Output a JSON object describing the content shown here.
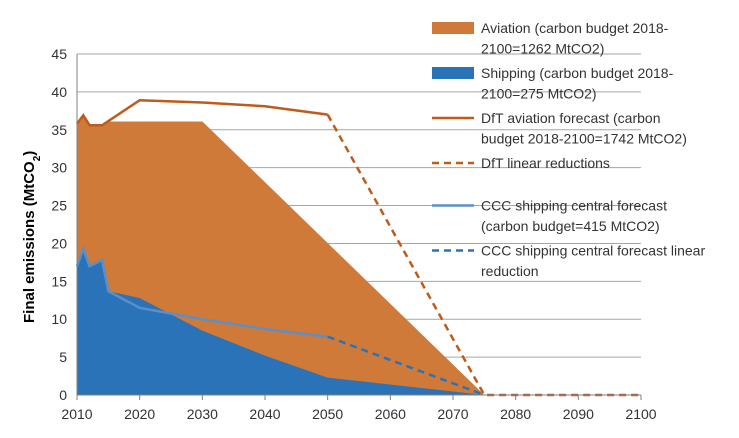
{
  "chart_data": {
    "type": "area",
    "ylabel_main": "Final emissions (MtCO",
    "ylabel_sub": "2",
    "ylabel_close": ")",
    "xlim": [
      2010,
      2100
    ],
    "ylim": [
      0,
      45
    ],
    "x_ticks": [
      "2010",
      "2020",
      "2030",
      "2040",
      "2050",
      "2060",
      "2070",
      "2080",
      "2090",
      "2100"
    ],
    "y_ticks": [
      "0",
      "5",
      "10",
      "15",
      "20",
      "25",
      "30",
      "35",
      "40",
      "45"
    ],
    "grid": "horizontal",
    "legend_position": "right",
    "colors": {
      "aviation_area": "#D07A3A",
      "shipping_area": "#2A73B8",
      "dft_line": "#C05A1A",
      "ccc_line": "#5B8FC7"
    },
    "series": [
      {
        "name": "Aviation (carbon budget 2018-2100=1262 MtCO2)",
        "kind": "area_total",
        "x": [
          2010,
          2011,
          2012,
          2014,
          2015,
          2020,
          2030,
          2075,
          2100
        ],
        "y": [
          35.8,
          36.7,
          35.6,
          35.6,
          36.1,
          36.1,
          36.1,
          0,
          0
        ]
      },
      {
        "name": "Shipping (carbon budget 2018-2100=275 MtCO2)",
        "kind": "area",
        "x": [
          2010,
          2011,
          2012,
          2014,
          2015,
          2020,
          2030,
          2040,
          2050,
          2075,
          2100
        ],
        "y": [
          17.0,
          19.3,
          17.0,
          17.8,
          13.7,
          12.8,
          8.5,
          5.2,
          2.3,
          0,
          0
        ]
      },
      {
        "name": "DfT aviation forecast (carbon budget 2018-2100=1742 MtCO2)",
        "kind": "line",
        "x": [
          2010,
          2011,
          2012,
          2014,
          2020,
          2030,
          2040,
          2050
        ],
        "y": [
          35.8,
          36.9,
          35.6,
          35.6,
          38.9,
          38.6,
          38.1,
          37.0
        ]
      },
      {
        "name": "DfT linear reductions",
        "kind": "dashed",
        "x": [
          2050,
          2075,
          2100
        ],
        "y": [
          37.0,
          0,
          0
        ]
      },
      {
        "name": "CCC shipping central forecast (carbon budget=415 MtCO2)",
        "kind": "line",
        "x": [
          2010,
          2011,
          2012,
          2014,
          2015,
          2020,
          2030,
          2040,
          2050
        ],
        "y": [
          17.0,
          19.3,
          17.0,
          17.8,
          13.7,
          11.5,
          10.0,
          8.7,
          7.7
        ]
      },
      {
        "name": "CCC shipping central forecast linear reduction",
        "kind": "dashed",
        "x": [
          2050,
          2075
        ],
        "y": [
          7.7,
          0
        ]
      }
    ],
    "legend": [
      {
        "kind": "area",
        "color": "#D07A3A",
        "lines": [
          "Aviation (carbon budget 2018-",
          "2100=1262 MtCO2)"
        ]
      },
      {
        "kind": "area",
        "color": "#2A73B8",
        "lines": [
          "Shipping (carbon budget 2018-",
          "2100=275 MtCO2)"
        ]
      },
      {
        "kind": "line",
        "color": "#C05A1A",
        "lines": [
          "DfT aviation forecast (carbon",
          "budget 2018-2100=1742 MtCO2)"
        ]
      },
      {
        "kind": "dashed",
        "color": "#C05A1A",
        "lines": [
          "DfT linear reductions"
        ]
      },
      {
        "kind": "gap",
        "lines": []
      },
      {
        "kind": "line",
        "color": "#5B8FC7",
        "lines": [
          "CCC shipping central forecast",
          "(carbon budget=415 MtCO2)"
        ]
      },
      {
        "kind": "dashed",
        "color": "#2A73B8",
        "lines": [
          "CCC shipping central forecast linear",
          "reduction"
        ]
      }
    ]
  }
}
